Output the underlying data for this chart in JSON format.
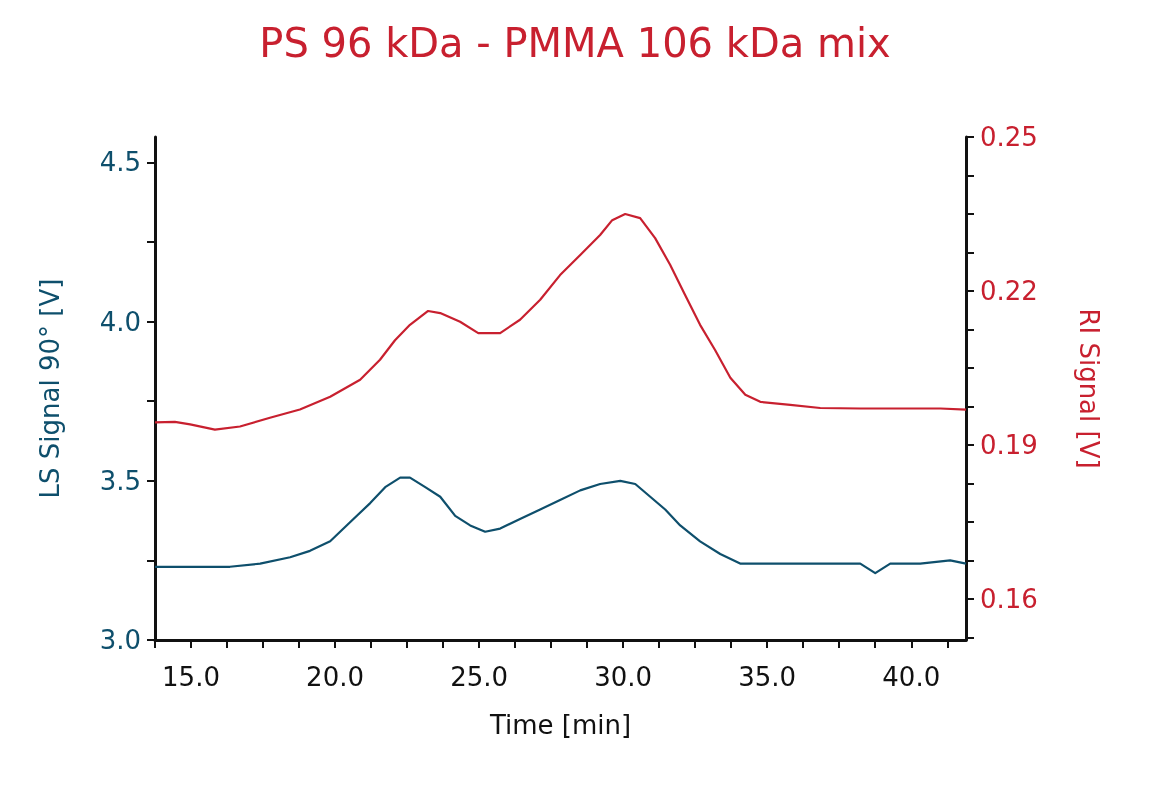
{
  "chart_data": {
    "type": "line",
    "title": "PS 96 kDa - PMMA 106 kDa mix",
    "xlabel": "Time [min]",
    "ylabel": "LS Signal 90° [V]",
    "y2label": "RI Signal [V]",
    "xlim": [
      13.75,
      41.9
    ],
    "xticks": [
      {
        "value": 13.75,
        "label": null
      },
      {
        "value": 15,
        "label": "15.0"
      },
      {
        "value": 16.25,
        "label": null
      },
      {
        "value": 17.5,
        "label": null
      },
      {
        "value": 18.75,
        "label": null
      },
      {
        "value": 20,
        "label": "20.0"
      },
      {
        "value": 21.25,
        "label": null
      },
      {
        "value": 22.5,
        "label": null
      },
      {
        "value": 23.75,
        "label": null
      },
      {
        "value": 25,
        "label": "25.0"
      },
      {
        "value": 26.25,
        "label": null
      },
      {
        "value": 27.5,
        "label": null
      },
      {
        "value": 28.75,
        "label": null
      },
      {
        "value": 30,
        "label": "30.0"
      },
      {
        "value": 31.25,
        "label": null
      },
      {
        "value": 32.5,
        "label": null
      },
      {
        "value": 33.75,
        "label": null
      },
      {
        "value": 35,
        "label": "35.0"
      },
      {
        "value": 36.25,
        "label": null
      },
      {
        "value": 37.5,
        "label": null
      },
      {
        "value": 38.75,
        "label": null
      },
      {
        "value": 40,
        "label": "40.0"
      },
      {
        "value": 41.25,
        "label": null
      }
    ],
    "ylim": [
      3.0,
      4.58
    ],
    "yticks": [
      {
        "value": 3,
        "label": "3.0"
      },
      {
        "value": 3.25,
        "label": null
      },
      {
        "value": 3.5,
        "label": "3.5"
      },
      {
        "value": 3.75,
        "label": null
      },
      {
        "value": 4,
        "label": "4.0"
      },
      {
        "value": 4.25,
        "label": null
      },
      {
        "value": 4.5,
        "label": "4.5"
      }
    ],
    "y2lim": [
      0.152,
      0.25
    ],
    "y2ticks": [
      {
        "value": 0.1525,
        "label": null
      },
      0.16,
      {
        "value": 0.1675,
        "label": null
      },
      {
        "value": 0.175,
        "label": null
      },
      {
        "value": 0.1825,
        "label": null
      },
      0.19,
      {
        "value": 0.1975,
        "label": null
      },
      {
        "value": 0.205,
        "label": null
      },
      {
        "value": 0.2125,
        "label": null
      },
      0.22,
      {
        "value": 0.2275,
        "label": null
      },
      {
        "value": 0.235,
        "label": null
      },
      {
        "value": 0.2425,
        "label": null
      },
      0.25
    ],
    "grid": false,
    "series": [
      {
        "color": "#0e4f6c",
        "x": [
          13.75,
          14.44,
          15.31,
          16.35,
          17.4,
          18.44,
          19.13,
          19.83,
          20.52,
          21.22,
          21.74,
          22.26,
          22.6,
          23.13,
          23.65,
          24.17,
          24.69,
          25.21,
          25.73,
          26.42,
          27.12,
          27.81,
          28.51,
          29.2,
          29.9,
          30.42,
          30.94,
          31.46,
          31.98,
          32.67,
          33.37,
          34.06,
          35.1,
          36.15,
          37.19,
          38.23,
          38.75,
          39.27,
          40.31,
          41.35,
          41.9
        ],
        "values": [
          3.23,
          3.23,
          3.23,
          3.23,
          3.24,
          3.26,
          3.28,
          3.31,
          3.37,
          3.43,
          3.48,
          3.51,
          3.51,
          3.48,
          3.45,
          3.39,
          3.36,
          3.34,
          3.35,
          3.38,
          3.41,
          3.44,
          3.47,
          3.49,
          3.5,
          3.49,
          3.45,
          3.41,
          3.36,
          3.31,
          3.27,
          3.24,
          3.24,
          3.24,
          3.24,
          3.24,
          3.21,
          3.24,
          3.24,
          3.25,
          3.24
        ]
      },
      {
        "color": "#c8202f",
        "axis": "y2",
        "x": [
          13.75,
          14.44,
          14.97,
          15.83,
          16.7,
          17.74,
          18.78,
          19.83,
          20.87,
          21.56,
          22.08,
          22.6,
          23.23,
          23.65,
          24.34,
          24.97,
          25.73,
          26.42,
          27.12,
          27.81,
          28.51,
          29.2,
          29.62,
          30.07,
          30.59,
          31.11,
          31.63,
          32.15,
          32.67,
          33.19,
          33.72,
          34.24,
          34.76,
          35.8,
          36.84,
          38.23,
          39.62,
          41.01,
          41.9
        ],
        "values": [
          0.1944,
          0.1945,
          0.194,
          0.193,
          0.1936,
          0.1953,
          0.1969,
          0.1994,
          0.2027,
          0.2066,
          0.2104,
          0.2134,
          0.2161,
          0.2157,
          0.214,
          0.2118,
          0.2118,
          0.2144,
          0.2183,
          0.2231,
          0.227,
          0.2309,
          0.2338,
          0.235,
          0.2342,
          0.2303,
          0.2251,
          0.2192,
          0.2134,
          0.2085,
          0.2031,
          0.1998,
          0.1984,
          0.1978,
          0.1972,
          0.1971,
          0.1971,
          0.1971,
          0.1969
        ]
      }
    ]
  }
}
